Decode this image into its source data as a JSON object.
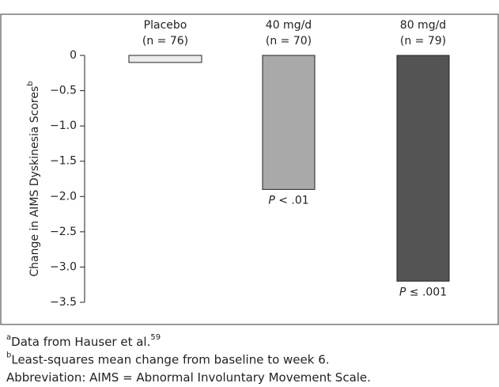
{
  "chart_data": {
    "type": "bar",
    "categories": [
      "Placebo",
      "40 mg/d",
      "80 mg/d"
    ],
    "sample_sizes": [
      "(n = 76)",
      "(n = 70)",
      "(n = 79)"
    ],
    "values": [
      -0.1,
      -1.9,
      -3.2
    ],
    "colors": [
      "#ececec",
      "#a9a9a9",
      "#545454"
    ],
    "ylim": [
      -3.5,
      0
    ],
    "yticks": [
      0,
      {
        "value": -0.5,
        "label": "−0.5"
      },
      {
        "value": -1,
        "label": "−1.0"
      },
      {
        "value": -1.5,
        "label": "−1.5"
      },
      {
        "value": -2,
        "label": "−2.0"
      },
      {
        "value": -2.5,
        "label": "−2.5"
      },
      {
        "value": -3,
        "label": "−3.0"
      },
      {
        "value": -3.5,
        "label": "−3.5"
      }
    ],
    "y_label": "Change in AIMS Dyskinesia Scores",
    "y_label_note": "b",
    "annotations": [
      null,
      {
        "italic": "P",
        "text": " < .01"
      },
      {
        "italic": "P",
        "text": " ≤ .001"
      }
    ],
    "footnotes": [
      {
        "mark": "a",
        "text": "Data from Hauser et al.",
        "ref": "59"
      },
      {
        "mark": "b",
        "text": "Least-squares mean change from baseline to week 6."
      },
      {
        "text": "Abbreviation: AIMS = Abnormal Involuntary Movement Scale."
      }
    ]
  }
}
